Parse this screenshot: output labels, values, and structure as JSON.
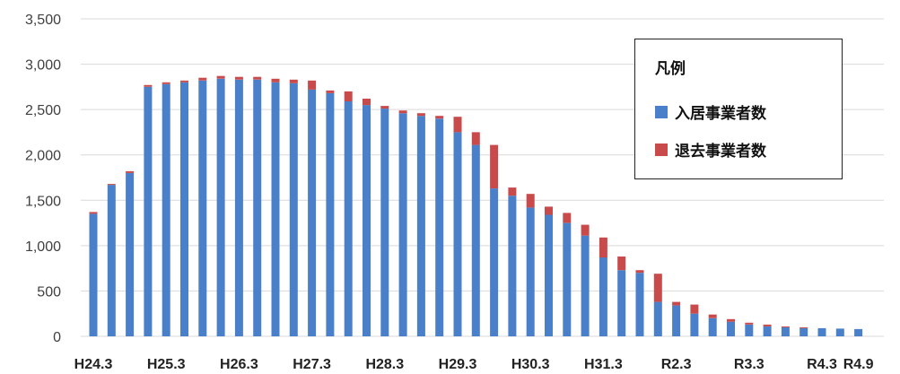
{
  "chart_data": {
    "type": "bar",
    "stacked": true,
    "x_tick_labels": [
      "H24.3",
      "H25.3",
      "H26.3",
      "H27.3",
      "H28.3",
      "H29.3",
      "H30.3",
      "H31.3",
      "R2.3",
      "R3.3",
      "R4.3",
      "R4.9"
    ],
    "categories": [
      "H24.3",
      "H24.6",
      "H24.9",
      "H24.12",
      "H25.3",
      "H25.6",
      "H25.9",
      "H25.12",
      "H26.3",
      "H26.6",
      "H26.9",
      "H26.12",
      "H27.3",
      "H27.6",
      "H27.9",
      "H27.12",
      "H28.3",
      "H28.6",
      "H28.9",
      "H28.12",
      "H29.3",
      "H29.6",
      "H29.9",
      "H29.12",
      "H30.3",
      "H30.6",
      "H30.9",
      "H30.12",
      "H31.3",
      "H31.6",
      "H31.9",
      "H31.12",
      "R2.3",
      "R2.6",
      "R2.9",
      "R2.12",
      "R3.3",
      "R3.6",
      "R3.9",
      "R3.12",
      "R4.3",
      "R4.6",
      "R4.9"
    ],
    "series": [
      {
        "name": "入居事業者数",
        "color": "#4a7fc9",
        "values": [
          1350,
          1670,
          1800,
          2750,
          2780,
          2800,
          2820,
          2840,
          2830,
          2830,
          2800,
          2790,
          2720,
          2680,
          2590,
          2550,
          2510,
          2460,
          2430,
          2400,
          2250,
          2110,
          1630,
          1550,
          1420,
          1340,
          1250,
          1110,
          870,
          730,
          700,
          380,
          340,
          250,
          200,
          160,
          130,
          110,
          100,
          90,
          90,
          85,
          80
        ]
      },
      {
        "name": "退去事業者数",
        "color": "#c94a4a",
        "values": [
          20,
          10,
          20,
          20,
          20,
          20,
          30,
          30,
          30,
          30,
          40,
          40,
          100,
          30,
          110,
          70,
          30,
          30,
          30,
          30,
          170,
          140,
          480,
          90,
          150,
          90,
          110,
          120,
          220,
          150,
          30,
          310,
          40,
          100,
          40,
          30,
          20,
          20,
          10,
          10,
          0,
          0,
          0
        ]
      }
    ],
    "ylim": [
      0,
      3500
    ],
    "yticks": [
      "0",
      "500",
      "1,000",
      "1,500",
      "2,000",
      "2,500",
      "3,000",
      "3,500"
    ],
    "ytick_values": [
      0,
      500,
      1000,
      1500,
      2000,
      2500,
      3000,
      3500
    ],
    "grid": true,
    "legend": {
      "title": "凡例",
      "placement": "right",
      "items": [
        "入居事業者数",
        "退去事業者数"
      ]
    }
  }
}
